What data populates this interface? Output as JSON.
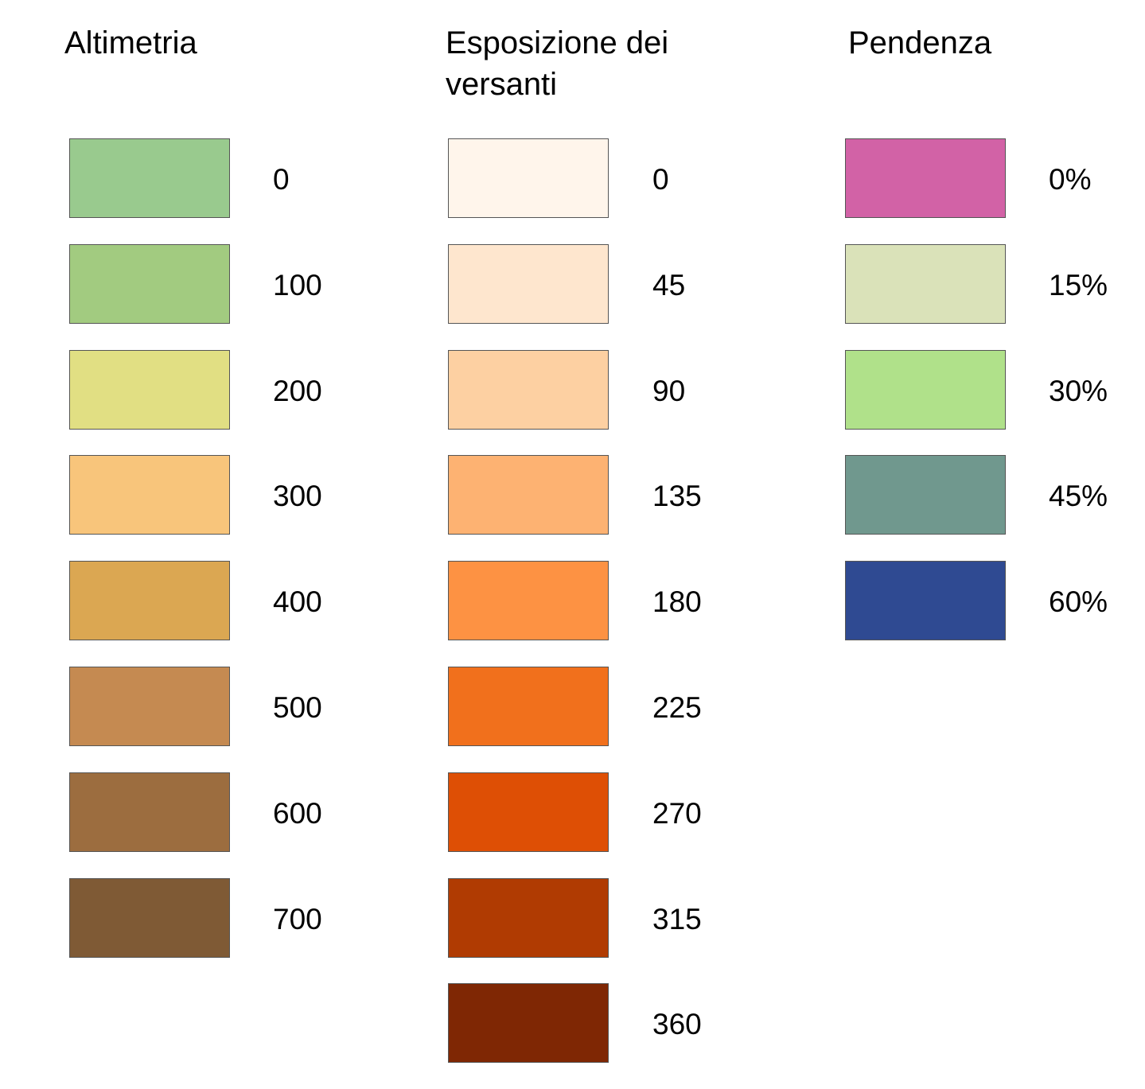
{
  "legends": [
    {
      "id": "altimetria",
      "title": "Altimetria",
      "items": [
        {
          "label": "0",
          "color": "#99CA8E"
        },
        {
          "label": "100",
          "color": "#A2CB80"
        },
        {
          "label": "200",
          "color": "#E1DF83"
        },
        {
          "label": "300",
          "color": "#F8C57B"
        },
        {
          "label": "400",
          "color": "#DBA752"
        },
        {
          "label": "500",
          "color": "#C58A51"
        },
        {
          "label": "600",
          "color": "#9C6D3F"
        },
        {
          "label": "700",
          "color": "#7F5A35"
        }
      ]
    },
    {
      "id": "esposizione",
      "title": "Esposizione dei\nversanti",
      "items": [
        {
          "label": "0",
          "color": "#FFF5EB"
        },
        {
          "label": "45",
          "color": "#FEE6CE"
        },
        {
          "label": "90",
          "color": "#FDD0A2"
        },
        {
          "label": "135",
          "color": "#FDB272"
        },
        {
          "label": "180",
          "color": "#FD9243"
        },
        {
          "label": "225",
          "color": "#F1701C"
        },
        {
          "label": "270",
          "color": "#DE4F05"
        },
        {
          "label": "315",
          "color": "#B03B02"
        },
        {
          "label": "360",
          "color": "#7F2704"
        }
      ]
    },
    {
      "id": "pendenza",
      "title": "Pendenza",
      "items": [
        {
          "label": "0%",
          "color": "#D262A6"
        },
        {
          "label": "15%",
          "color": "#DAE2B9"
        },
        {
          "label": "30%",
          "color": "#B0E18A"
        },
        {
          "label": "45%",
          "color": "#70988E"
        },
        {
          "label": "60%",
          "color": "#2F4A92"
        }
      ]
    }
  ]
}
